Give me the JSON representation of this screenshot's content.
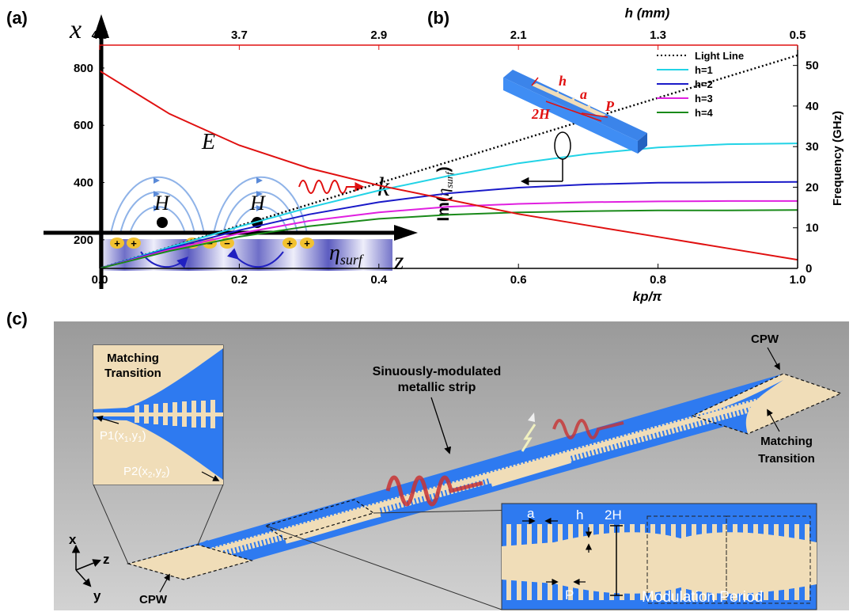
{
  "panel_a": {
    "label": "(a)",
    "axis_x": "x",
    "axis_z": "z",
    "field_e": "E",
    "field_h1": "H",
    "field_h2": "H",
    "wave_k": "k",
    "eta_base": "η",
    "eta_sub": "surf",
    "charges": [
      "+",
      "+",
      "−",
      "−",
      "−",
      "+",
      "+"
    ]
  },
  "panel_b": {
    "label": "(b)",
    "top_axis_title": "h (mm)",
    "top_ticks": [
      "4.5",
      "3.7",
      "2.9",
      "2.1",
      "1.3",
      "0.5"
    ],
    "inset_labels": {
      "h": "h",
      "a": "a",
      "twoH": "2H",
      "P": "P"
    }
  },
  "chart_data": {
    "type": "line",
    "xlabel": "kp/π",
    "ylabel_left": "Im(η_surf)",
    "ylabel_right": "Frequency (GHz)",
    "xlim": [
      0.0,
      1.0
    ],
    "ylim_left": [
      100,
      880
    ],
    "ylim_right": [
      0,
      55
    ],
    "x_ticks": [
      "0.0",
      "0.2",
      "0.4",
      "0.6",
      "0.8",
      "1.0"
    ],
    "y_left_ticks": [
      "200",
      "400",
      "600",
      "800"
    ],
    "y_right_ticks": [
      "0",
      "10",
      "20",
      "30",
      "40",
      "50"
    ],
    "legend_position": "top-right",
    "series": [
      {
        "name": "Light Line",
        "axis": "right",
        "color": "#000000",
        "dash": "dotted",
        "x": [
          0.0,
          1.0
        ],
        "y": [
          0,
          52.5
        ]
      },
      {
        "name": "h=1",
        "axis": "right",
        "color": "#22d3e6",
        "x": [
          0.0,
          0.1,
          0.2,
          0.3,
          0.4,
          0.5,
          0.6,
          0.7,
          0.8,
          0.9,
          1.0
        ],
        "y": [
          0,
          5.2,
          10.3,
          15.0,
          19.2,
          22.8,
          25.9,
          28.2,
          29.8,
          30.6,
          30.8
        ]
      },
      {
        "name": "h=2",
        "axis": "right",
        "color": "#1a1ac8",
        "x": [
          0.0,
          0.1,
          0.2,
          0.3,
          0.4,
          0.5,
          0.6,
          0.7,
          0.8,
          0.9,
          1.0
        ],
        "y": [
          0,
          4.9,
          9.4,
          13.3,
          16.3,
          18.5,
          19.9,
          20.7,
          21.1,
          21.2,
          21.3
        ]
      },
      {
        "name": "h=3",
        "axis": "right",
        "color": "#e020e0",
        "x": [
          0.0,
          0.1,
          0.2,
          0.3,
          0.4,
          0.5,
          0.6,
          0.7,
          0.8,
          0.9,
          1.0
        ],
        "y": [
          0,
          4.6,
          8.6,
          11.7,
          13.8,
          15.2,
          15.9,
          16.3,
          16.5,
          16.6,
          16.6
        ]
      },
      {
        "name": "h=4",
        "axis": "right",
        "color": "#1a8a1a",
        "x": [
          0.0,
          0.1,
          0.2,
          0.3,
          0.4,
          0.5,
          0.6,
          0.7,
          0.8,
          0.9,
          1.0
        ],
        "y": [
          0,
          4.3,
          7.8,
          10.4,
          12.2,
          13.2,
          13.8,
          14.1,
          14.3,
          14.3,
          14.4
        ]
      },
      {
        "name": "",
        "axis": "left",
        "color": "#e01010",
        "x": [
          0.0,
          0.1,
          0.2,
          0.3,
          0.4,
          0.5,
          0.6,
          0.7,
          0.8,
          0.9,
          1.0
        ],
        "y": [
          790,
          640,
          530,
          450,
          390,
          340,
          290,
          250,
          210,
          170,
          130
        ]
      }
    ]
  },
  "panel_c": {
    "label": "(c)",
    "strip_label": [
      "Sinuously-modulated",
      "metallic strip"
    ],
    "cpw_top": "CPW",
    "cpw_bottom": "CPW",
    "matching_right": [
      "Matching",
      "Transition"
    ],
    "inset_title": [
      "Matching",
      "Transition"
    ],
    "p1": "P1(x",
    "p1_sub1": "1",
    "p1_mid": ",y",
    "p1_sub2": "1",
    "p1_end": ")",
    "p2": "P2(x",
    "p2_sub1": "2",
    "p2_mid": ",y",
    "p2_sub2": "2",
    "p2_end": ")",
    "axis_x": "x",
    "axis_y": "y",
    "axis_z": "z",
    "dim_a": "a",
    "dim_h": "h",
    "dim_2H": "2H",
    "dim_P": "P",
    "modulation_period": "Modulation Period"
  },
  "colors": {
    "substrate_blue": "#2e7af0",
    "metal_tan": "#f0ddb8",
    "impedance_red": "#e01010",
    "wave_red": "#d83a3a"
  }
}
